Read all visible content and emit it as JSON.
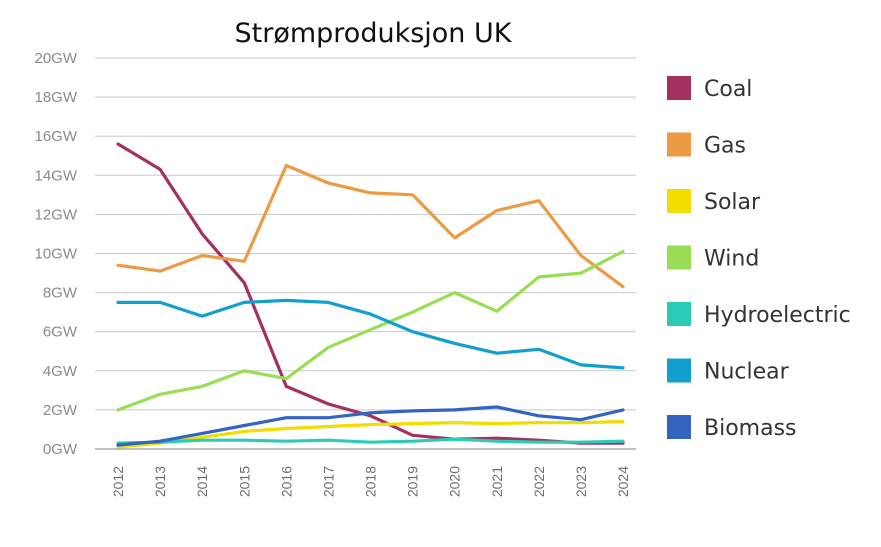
{
  "chart_data": {
    "type": "line",
    "title": "Strømproduksjon UK",
    "xlabel": "",
    "ylabel": "",
    "ylim": [
      0,
      20
    ],
    "y_ticks": [
      0,
      2,
      4,
      6,
      8,
      10,
      12,
      14,
      16,
      18,
      20
    ],
    "y_tick_labels": [
      "0GW",
      "2GW",
      "4GW",
      "6GW",
      "8GW",
      "10GW",
      "12GW",
      "14GW",
      "16GW",
      "18GW",
      "20GW"
    ],
    "x": [
      "2012",
      "2013",
      "2014",
      "2015",
      "2016",
      "2017",
      "2018",
      "2019",
      "2020",
      "2021",
      "2022",
      "2023",
      "2024"
    ],
    "grid": true,
    "legend_position": "right",
    "series": [
      {
        "name": "Coal",
        "color": "#a3305f",
        "values": [
          15.6,
          14.3,
          11.0,
          8.5,
          3.2,
          2.3,
          1.7,
          0.7,
          0.5,
          0.55,
          0.45,
          0.3,
          0.3
        ]
      },
      {
        "name": "Gas",
        "color": "#ee9a45",
        "values": [
          9.4,
          9.1,
          9.9,
          9.6,
          14.5,
          13.6,
          13.1,
          13.0,
          10.8,
          12.2,
          12.7,
          9.9,
          8.3
        ]
      },
      {
        "name": "Solar",
        "color": "#f2dd00",
        "values": [
          0.1,
          0.3,
          0.6,
          0.9,
          1.05,
          1.15,
          1.25,
          1.3,
          1.35,
          1.3,
          1.35,
          1.35,
          1.4
        ]
      },
      {
        "name": "Wind",
        "color": "#99dd55",
        "values": [
          2.0,
          2.8,
          3.2,
          4.0,
          3.6,
          5.2,
          6.1,
          7.0,
          8.0,
          7.05,
          8.8,
          9.0,
          10.1
        ]
      },
      {
        "name": "Hydroelectric",
        "color": "#2bcbb8",
        "values": [
          0.3,
          0.35,
          0.45,
          0.45,
          0.4,
          0.45,
          0.35,
          0.4,
          0.5,
          0.4,
          0.35,
          0.35,
          0.4
        ]
      },
      {
        "name": "Nuclear",
        "color": "#129fd0",
        "values": [
          7.5,
          7.5,
          6.8,
          7.5,
          7.6,
          7.5,
          6.9,
          6.0,
          5.4,
          4.9,
          5.1,
          4.3,
          4.15
        ]
      },
      {
        "name": "Biomass",
        "color": "#3264c0",
        "values": [
          0.2,
          0.4,
          0.8,
          1.2,
          1.6,
          1.6,
          1.85,
          1.95,
          2.0,
          2.15,
          1.7,
          1.5,
          2.0
        ]
      }
    ]
  }
}
